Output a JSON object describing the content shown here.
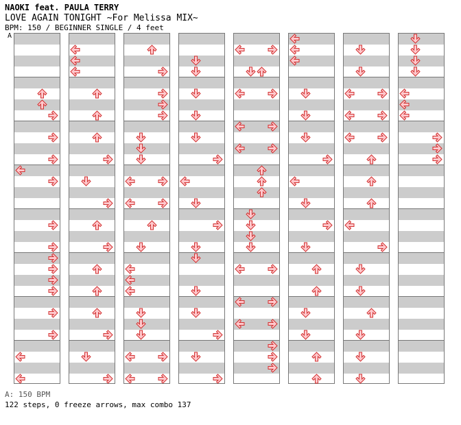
{
  "song": {
    "artist": "NAOKI feat. PAULA TERRY",
    "title": "LOVE AGAIN TONIGHT ~For Melissa MIX~",
    "info": "BPM: 150 / BEGINNER SINGLE / 4 feet"
  },
  "bpm_marker": "A",
  "footer": {
    "bpm_legend": "A: 150 BPM",
    "stats": "122 steps, 0 freeze arrows, max combo 137"
  },
  "colors": {
    "arrow_fill": "#ffc8cc",
    "arrow_stroke": "#d23030",
    "stripe": "#cccccc",
    "border": "#777777",
    "bpm_line": "#6aa0e0"
  },
  "chart": {
    "columns": 8,
    "measures_per_column": 8,
    "rows_per_measure": 8,
    "lanes": [
      "left",
      "down",
      "up",
      "right"
    ],
    "notes": [
      [
        [
          1,
          0,
          0
        ],
        [
          1,
          0,
          2
        ],
        [
          1,
          0,
          4
        ]
      ],
      [
        [
          1,
          1,
          2
        ],
        [
          1,
          1,
          6
        ],
        [
          1,
          1,
          0
        ],
        [
          1,
          1,
          4
        ]
      ],
      [
        [
          1,
          2,
          2
        ],
        [
          1,
          2,
          6
        ]
      ],
      [
        [
          1,
          3,
          2
        ],
        [
          1,
          3,
          6
        ]
      ],
      [
        [
          1,
          4,
          2
        ],
        [
          1,
          4,
          6
        ]
      ],
      [
        [
          1,
          5,
          2
        ],
        [
          1,
          5,
          6
        ]
      ],
      [
        [
          1,
          6,
          2
        ],
        [
          1,
          6,
          6
        ]
      ],
      [
        [
          1,
          7,
          2
        ],
        [
          1,
          7,
          6
        ]
      ]
    ]
  }
}
